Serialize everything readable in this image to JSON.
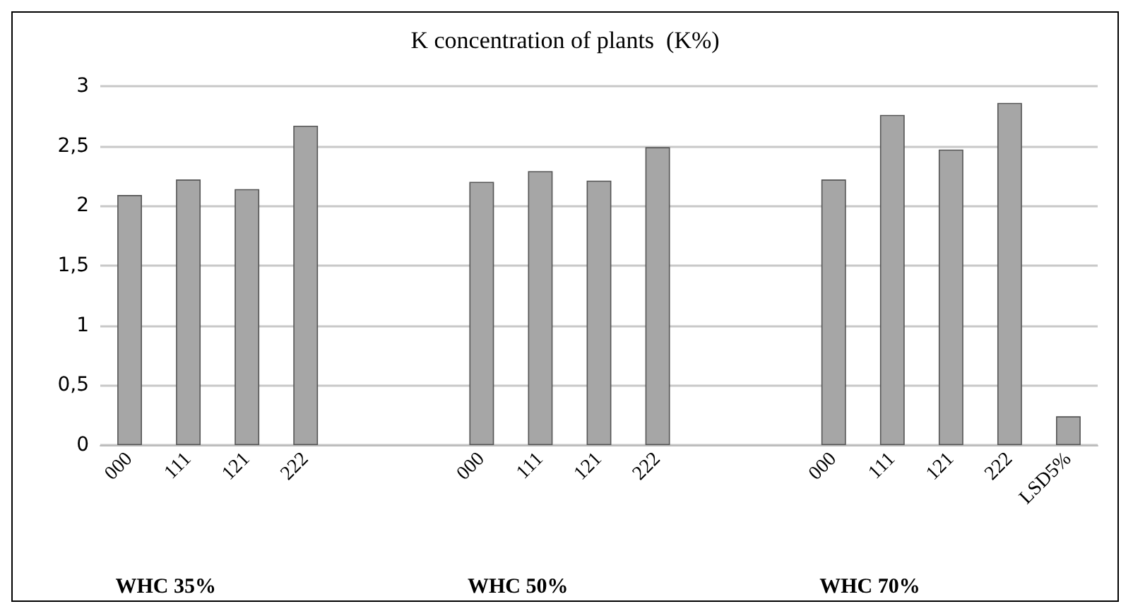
{
  "chart_data": {
    "type": "bar",
    "title": "K concentration of plants  (K%)",
    "categories": [
      "000",
      "111",
      "121",
      "222",
      null,
      null,
      "000",
      "111",
      "121",
      "222",
      null,
      null,
      "000",
      "111",
      "121",
      "222",
      "LSD5%"
    ],
    "values": [
      2.09,
      2.22,
      2.14,
      2.67,
      null,
      null,
      2.2,
      2.29,
      2.21,
      2.49,
      null,
      null,
      2.22,
      2.76,
      2.47,
      2.86,
      0.24
    ],
    "color": "#a6a6a6",
    "ylim": [
      0,
      3
    ],
    "yticks": [
      0,
      {
        "value": 0.5,
        "label": "0,5"
      },
      1,
      {
        "value": 1.5,
        "label": "1,5"
      },
      2,
      {
        "value": 2.5,
        "label": "2,5"
      },
      3
    ],
    "grid": "y",
    "annotations": [
      "WHC 35%",
      "WHC 50%",
      "WHC 70%"
    ]
  }
}
